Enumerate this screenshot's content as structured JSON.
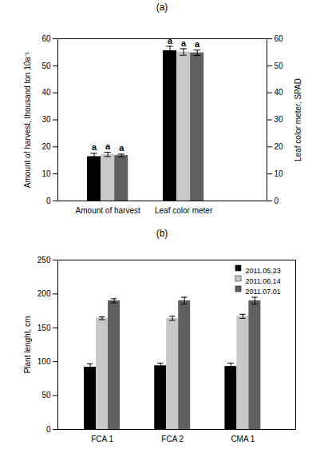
{
  "chart_data": [
    {
      "type": "bar",
      "title": "(a)",
      "categories": [
        "Amount of harvest",
        "Leaf color meter"
      ],
      "y_label": "Amount of harvest, thousand ton 10a⁻¹",
      "y2_label": "Leaf color meter, SPAD",
      "ylim": [
        0,
        60
      ],
      "yticks": [
        0,
        10,
        20,
        30,
        40,
        50,
        60
      ],
      "y2lim": [
        0,
        60
      ],
      "y2ticks": [
        0,
        10,
        20,
        30,
        40,
        50,
        60
      ],
      "series": [
        {
          "color": "#000000",
          "values": [
            16.4,
            55.6
          ],
          "errors": [
            1.2,
            1.6
          ],
          "annotations": [
            "a",
            "a"
          ]
        },
        {
          "color": "#c8c8c8",
          "values": [
            17.2,
            55.1
          ],
          "errors": [
            0.8,
            1.2
          ],
          "annotations": [
            "a",
            "a"
          ]
        },
        {
          "color": "#5f5f5f",
          "values": [
            16.8,
            54.8
          ],
          "errors": [
            0.5,
            1.0
          ],
          "annotations": [
            "a",
            "a"
          ]
        }
      ]
    },
    {
      "type": "bar",
      "title": "(b)",
      "categories": [
        "FCA 1",
        "FCA 2",
        "CMA 1"
      ],
      "y_label": "Plant lenght, cm",
      "ylim": [
        0,
        250
      ],
      "yticks": [
        0,
        50,
        100,
        150,
        200,
        250
      ],
      "legend": "top-right",
      "series": [
        {
          "name": "2011.05.23",
          "color": "#000000",
          "values": [
            92,
            94,
            93
          ],
          "errors": [
            5,
            4,
            5
          ]
        },
        {
          "name": "2011.06.14",
          "color": "#c8c8c8",
          "values": [
            164,
            164,
            167
          ],
          "errors": [
            2,
            3,
            3
          ]
        },
        {
          "name": "2011.07.01",
          "color": "#5f5f5f",
          "values": [
            190,
            190,
            190
          ],
          "errors": [
            3,
            5,
            5
          ]
        }
      ]
    }
  ]
}
